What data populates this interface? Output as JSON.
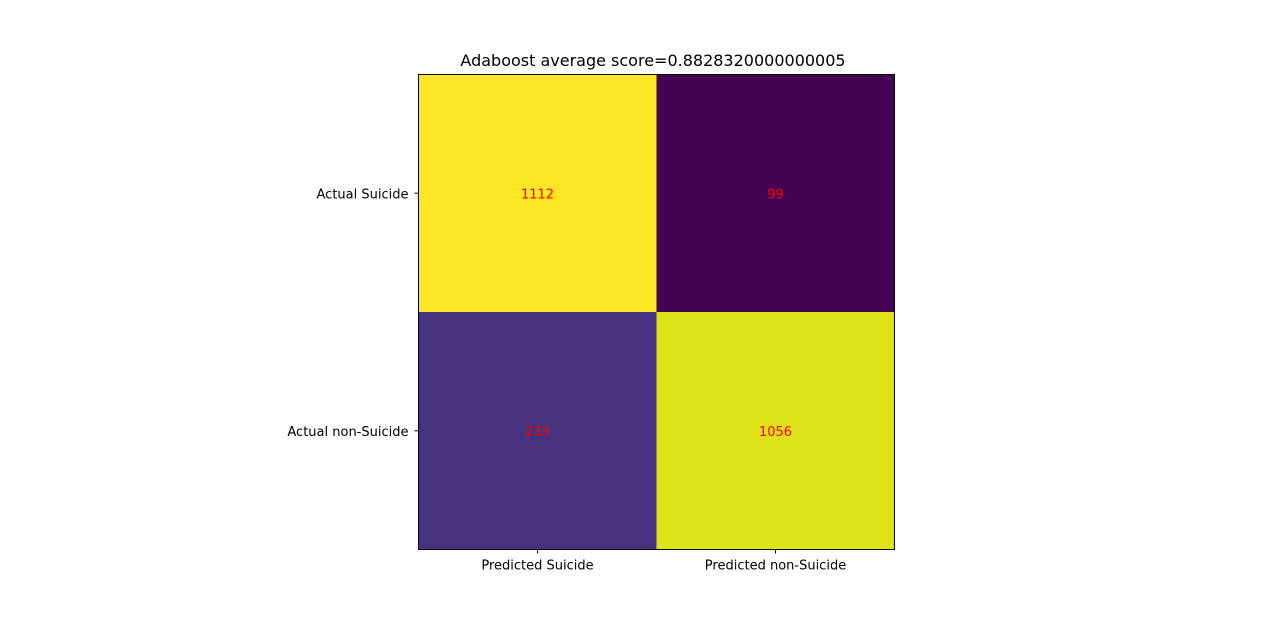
{
  "chart_data": {
    "type": "heatmap",
    "title": "Adaboost average score=0.8828320000000005",
    "xlabel": "",
    "ylabel": "",
    "x_categories": [
      "Predicted Suicide",
      "Predicted non-Suicide"
    ],
    "y_categories": [
      "Actual Suicide",
      "Actual non-Suicide"
    ],
    "values": [
      [
        1112,
        99
      ],
      [
        233,
        1056
      ]
    ],
    "colormap": "viridis",
    "annotation_color": "#ff0000",
    "grid": false,
    "legend": "none"
  },
  "colors": {
    "cell_colors": [
      [
        "#fde725",
        "#440154"
      ],
      [
        "#46327e",
        "#dde318"
      ]
    ],
    "annotation": "#ff0000",
    "axes_frame": "#000000"
  }
}
